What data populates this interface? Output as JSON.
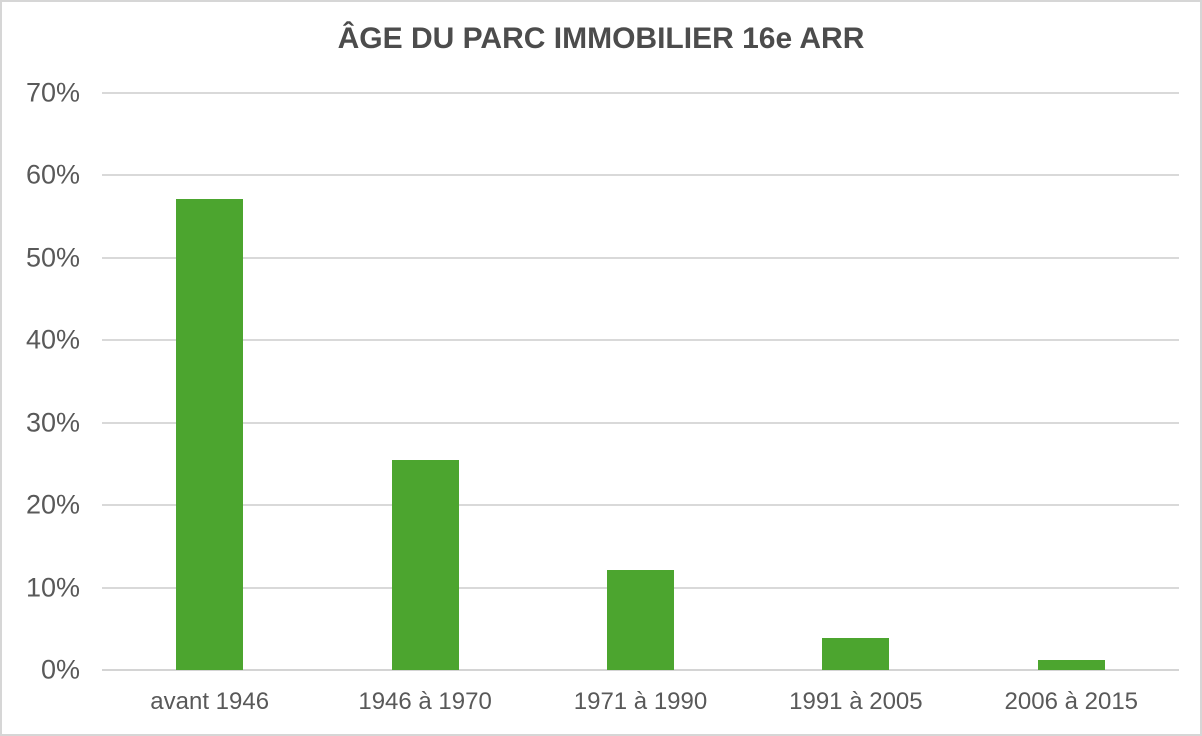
{
  "title": "ÂGE DU PARC IMMOBILIER 16e ARR",
  "colors": {
    "bar": "#4CA52F",
    "gridline": "#D9D9D9",
    "baseline": "#D4D4D4",
    "axis_text": "#595959",
    "title_text": "#4C4C4C",
    "frame_border": "#D6D6D6",
    "background": "#FFFFFF"
  },
  "y_axis": {
    "ticks": [
      {
        "label": "70%",
        "value": 70
      },
      {
        "label": "60%",
        "value": 60
      },
      {
        "label": "50%",
        "value": 50
      },
      {
        "label": "40%",
        "value": 40
      },
      {
        "label": "30%",
        "value": 30
      },
      {
        "label": "20%",
        "value": 20
      },
      {
        "label": "10%",
        "value": 10
      },
      {
        "label": "0%",
        "value": 0
      }
    ]
  },
  "chart_data": {
    "type": "bar",
    "title": "ÂGE DU PARC IMMOBILIER 16e ARR",
    "categories": [
      "avant 1946",
      "1946 à 1970",
      "1971 à 1990",
      "1991 à 2005",
      "2006 à 2015"
    ],
    "values": [
      57.2,
      25.5,
      12.1,
      3.9,
      1.2
    ],
    "value_unit": "%",
    "xlabel": "",
    "ylabel": "",
    "ylim": [
      0,
      70
    ],
    "y_tick_step": 10,
    "grid": true,
    "legend": false,
    "bar_color": "#4CA52F"
  }
}
